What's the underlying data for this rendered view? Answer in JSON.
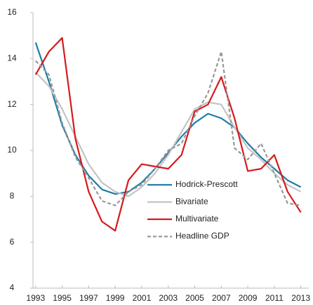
{
  "chart_data": {
    "type": "line",
    "x": [
      1993,
      1994,
      1995,
      1996,
      1997,
      1998,
      1999,
      2000,
      2001,
      2002,
      2003,
      2004,
      2005,
      2006,
      2007,
      2008,
      2009,
      2010,
      2011,
      2012,
      2013
    ],
    "series": [
      {
        "name": "Hodrick-Prescott",
        "color": "#1f7ea6",
        "dash": false,
        "values": [
          14.7,
          13.0,
          11.1,
          9.8,
          8.9,
          8.3,
          8.1,
          8.2,
          8.6,
          9.2,
          9.9,
          10.6,
          11.2,
          11.6,
          11.4,
          11.0,
          10.3,
          9.7,
          9.2,
          8.7,
          8.4
        ]
      },
      {
        "name": "Bivariate",
        "color": "#c4c4c4",
        "dash": false,
        "values": [
          13.4,
          12.8,
          11.8,
          10.6,
          9.4,
          8.6,
          8.2,
          8.0,
          8.4,
          9.0,
          9.8,
          10.8,
          11.8,
          12.1,
          12.0,
          11.0,
          10.1,
          9.6,
          9.0,
          8.5,
          8.2
        ]
      },
      {
        "name": "Multivariate",
        "color": "#d7191c",
        "dash": false,
        "values": [
          13.3,
          14.3,
          14.9,
          10.5,
          8.2,
          6.9,
          6.5,
          8.7,
          9.4,
          9.3,
          9.2,
          9.8,
          11.7,
          12.0,
          13.2,
          11.4,
          9.1,
          9.2,
          9.8,
          8.2,
          7.3
        ]
      },
      {
        "name": "Headline GDP",
        "color": "#999999",
        "dash": true,
        "values": [
          13.9,
          13.3,
          11.2,
          9.7,
          8.8,
          7.8,
          7.6,
          8.2,
          8.5,
          9.2,
          10.0,
          10.3,
          11.5,
          12.5,
          14.3,
          10.1,
          9.6,
          10.3,
          9.0,
          7.7,
          7.6
        ]
      }
    ],
    "xlim": [
      1992.8,
      2013.6
    ],
    "xticks": [
      1993,
      1995,
      1997,
      1999,
      2001,
      2003,
      2005,
      2007,
      2009,
      2011,
      2013
    ],
    "ylim": [
      4,
      16
    ],
    "yticks": [
      4,
      6,
      8,
      10,
      12,
      14,
      16
    ]
  }
}
